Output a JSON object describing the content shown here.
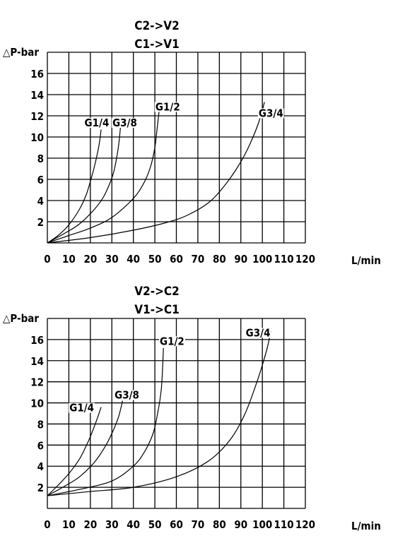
{
  "chart_data": [
    {
      "type": "line",
      "title_lines": [
        "C2->V2",
        "C1->V1"
      ],
      "ylabel": "△P-bar",
      "xlabel_unit": "L/min",
      "x_ticks": [
        0,
        10,
        20,
        30,
        40,
        50,
        60,
        70,
        80,
        90,
        100,
        110,
        120
      ],
      "y_ticks": [
        2,
        4,
        6,
        8,
        10,
        12,
        14,
        16
      ],
      "xlim": [
        0,
        120
      ],
      "ylim": [
        0,
        18
      ],
      "grid": true,
      "series": [
        {
          "name": "G1/4",
          "label_pos": [
            23,
            11.0
          ],
          "x": [
            0,
            5,
            10,
            15,
            18,
            20,
            22,
            24,
            25
          ],
          "y": [
            0,
            0.7,
            1.7,
            3.2,
            4.5,
            5.8,
            7.3,
            9.2,
            10.7
          ]
        },
        {
          "name": "G3/8",
          "label_pos": [
            36,
            11.0
          ],
          "x": [
            0,
            8,
            15,
            22,
            26,
            29,
            31,
            33,
            34
          ],
          "y": [
            0,
            0.9,
            1.8,
            3.2,
            4.3,
            5.6,
            6.8,
            9.0,
            10.9
          ]
        },
        {
          "name": "G1/2",
          "label_pos": [
            56,
            12.5
          ],
          "x": [
            0,
            10,
            20,
            30,
            40,
            45,
            48,
            50,
            51,
            52
          ],
          "y": [
            0,
            0.7,
            1.4,
            2.4,
            4.2,
            5.7,
            7.2,
            9.0,
            10.7,
            12.5
          ]
        },
        {
          "name": "G3/4",
          "label_pos": [
            104,
            11.9
          ],
          "x": [
            0,
            20,
            40,
            55,
            65,
            75,
            82,
            88,
            93,
            98,
            101
          ],
          "y": [
            0,
            0.5,
            1.2,
            1.9,
            2.6,
            3.8,
            5.3,
            7.0,
            8.8,
            11.2,
            13.3
          ]
        }
      ]
    },
    {
      "type": "line",
      "title_lines": [
        "V2->C2",
        "V1->C1"
      ],
      "ylabel": "△P-bar",
      "xlabel_unit": "L/min",
      "x_ticks": [
        0,
        10,
        20,
        30,
        40,
        50,
        60,
        70,
        80,
        90,
        100,
        110,
        120
      ],
      "y_ticks": [
        2,
        4,
        6,
        8,
        10,
        12,
        14,
        16
      ],
      "xlim": [
        0,
        120
      ],
      "ylim": [
        0,
        18
      ],
      "grid": true,
      "series": [
        {
          "name": "G1/4",
          "label_pos": [
            16,
            9.2
          ],
          "x": [
            0,
            5,
            10,
            15,
            18,
            20,
            23,
            25
          ],
          "y": [
            1.2,
            2.2,
            3.3,
            4.7,
            5.9,
            6.8,
            8.4,
            9.6
          ]
        },
        {
          "name": "G3/8",
          "label_pos": [
            37,
            10.4
          ],
          "x": [
            0,
            8,
            15,
            22,
            27,
            30,
            33,
            35
          ],
          "y": [
            1.2,
            2.1,
            3.0,
            4.4,
            5.9,
            7.1,
            8.6,
            10.2
          ]
        },
        {
          "name": "G1/2",
          "label_pos": [
            58,
            15.5
          ],
          "x": [
            0,
            15,
            30,
            40,
            45,
            49,
            51,
            53,
            54
          ],
          "y": [
            1.2,
            1.8,
            2.6,
            4.0,
            5.3,
            7.0,
            8.7,
            11.3,
            15.2
          ]
        },
        {
          "name": "G3/4",
          "label_pos": [
            98,
            16.3
          ],
          "x": [
            0,
            20,
            40,
            60,
            75,
            85,
            92,
            98,
            102,
            104
          ],
          "y": [
            1.2,
            1.6,
            2.0,
            3.0,
            4.5,
            6.5,
            9.0,
            12.3,
            15.0,
            16.8
          ]
        }
      ]
    }
  ]
}
